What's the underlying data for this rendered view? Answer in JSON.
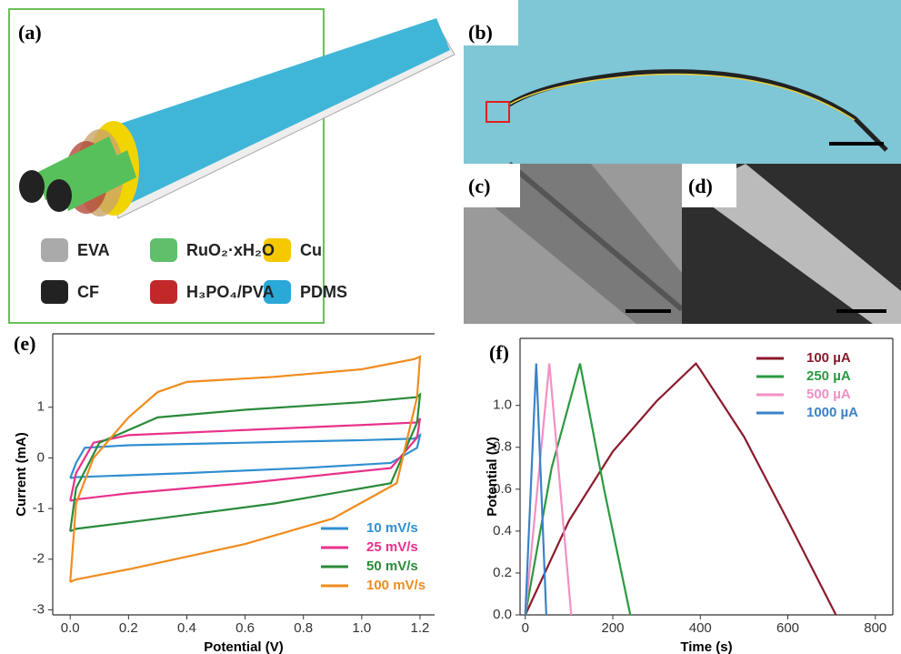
{
  "panels": {
    "a": {
      "label": "(a)",
      "legend": [
        "EVA",
        "RuO₂·xH₂O",
        "Cu",
        "CF",
        "H₃PO₄/PVA",
        "PDMS"
      ]
    },
    "b": {
      "label": "(b)"
    },
    "c": {
      "label": "(c)"
    },
    "d": {
      "label": "(d)"
    }
  },
  "chart_data": [
    {
      "type": "line",
      "label": "(e)",
      "xlabel": "Potential (V)",
      "ylabel": "Current (mA)",
      "legend": "lower right",
      "xlim": [
        -0.06,
        1.25
      ],
      "ylim": [
        -3.1,
        2.45
      ],
      "xticks": [
        {
          "value": 0,
          "label": "0.0"
        },
        {
          "value": 0.2,
          "label": "0.2"
        },
        {
          "value": 0.4,
          "label": "0.4"
        },
        {
          "value": 0.6,
          "label": "0.6"
        },
        {
          "value": 0.8,
          "label": "0.8"
        },
        {
          "value": 1,
          "label": "1.0"
        },
        {
          "value": 1.2,
          "label": "1.2"
        }
      ],
      "yticks": [
        1,
        0,
        -1,
        -2,
        -3
      ],
      "series": [
        {
          "name": "10 mV/s",
          "color": "#2f8fd0",
          "x": [
            0,
            0.02,
            0.05,
            0.2,
            0.6,
            1.0,
            1.18,
            1.2,
            1.19,
            1.1,
            0.8,
            0.4,
            0.02,
            0
          ],
          "values": [
            -0.4,
            -0.1,
            0.2,
            0.25,
            0.3,
            0.35,
            0.38,
            0.45,
            0.2,
            -0.1,
            -0.2,
            -0.3,
            -0.38,
            -0.4
          ]
        },
        {
          "name": "25 mV/s",
          "color": "#e8318a",
          "x": [
            0,
            0.02,
            0.08,
            0.2,
            0.6,
            1.0,
            1.19,
            1.2,
            1.19,
            1.1,
            0.6,
            0.2,
            0.02,
            0
          ],
          "values": [
            -0.85,
            -0.3,
            0.3,
            0.45,
            0.55,
            0.65,
            0.7,
            0.78,
            0.4,
            -0.2,
            -0.5,
            -0.7,
            -0.82,
            -0.85
          ]
        },
        {
          "name": "50 mV/s",
          "color": "#2a8a3a",
          "x": [
            0,
            0.02,
            0.1,
            0.3,
            0.6,
            1.0,
            1.19,
            1.2,
            1.19,
            1.1,
            0.7,
            0.3,
            0.02,
            0
          ],
          "values": [
            -1.45,
            -0.6,
            0.3,
            0.8,
            0.95,
            1.1,
            1.2,
            1.25,
            0.7,
            -0.5,
            -0.9,
            -1.2,
            -1.4,
            -1.45
          ]
        },
        {
          "name": "100 mV/s",
          "color": "#f08c1e",
          "x": [
            0,
            0.02,
            0.08,
            0.2,
            0.3,
            0.4,
            0.7,
            1.0,
            1.18,
            1.2,
            1.19,
            1.12,
            0.9,
            0.6,
            0.2,
            0.02,
            0
          ],
          "values": [
            -2.45,
            -0.9,
            0,
            0.8,
            1.3,
            1.5,
            1.6,
            1.75,
            1.95,
            2.0,
            1.2,
            -0.5,
            -1.2,
            -1.7,
            -2.2,
            -2.4,
            -2.45
          ]
        }
      ]
    },
    {
      "type": "line",
      "label": "(f)",
      "xlabel": "Time (s)",
      "ylabel": "Potential (V)",
      "legend": "upper right",
      "xlim": [
        -12,
        840
      ],
      "ylim": [
        0,
        1.32
      ],
      "xticks": [
        0,
        200,
        400,
        600,
        800
      ],
      "yticks": [
        {
          "value": 0,
          "label": "0.0"
        },
        {
          "value": 0.2,
          "label": "0.2"
        },
        {
          "value": 0.4,
          "label": "0.4"
        },
        {
          "value": 0.6,
          "label": "0.6"
        },
        {
          "value": 0.8,
          "label": "0.8"
        },
        {
          "value": 1,
          "label": "1.0"
        }
      ],
      "series": [
        {
          "name": "100 µA",
          "color": "#8b1a2b",
          "x": [
            0,
            100,
            200,
            300,
            390,
            400,
            500,
            600,
            710
          ],
          "values": [
            0,
            0.45,
            0.78,
            1.02,
            1.2,
            1.17,
            0.85,
            0.45,
            0
          ]
        },
        {
          "name": "250 µA",
          "color": "#2a9a40",
          "x": [
            0,
            60,
            125,
            180,
            240
          ],
          "values": [
            0,
            0.7,
            1.2,
            0.6,
            0
          ]
        },
        {
          "name": "500 µA",
          "color": "#f290c4",
          "x": [
            0,
            55,
            105
          ],
          "values": [
            0,
            1.2,
            0
          ]
        },
        {
          "name": "1000 µA",
          "color": "#3a82c8",
          "x": [
            0,
            25,
            48
          ],
          "values": [
            0,
            1.2,
            0
          ]
        }
      ]
    }
  ]
}
